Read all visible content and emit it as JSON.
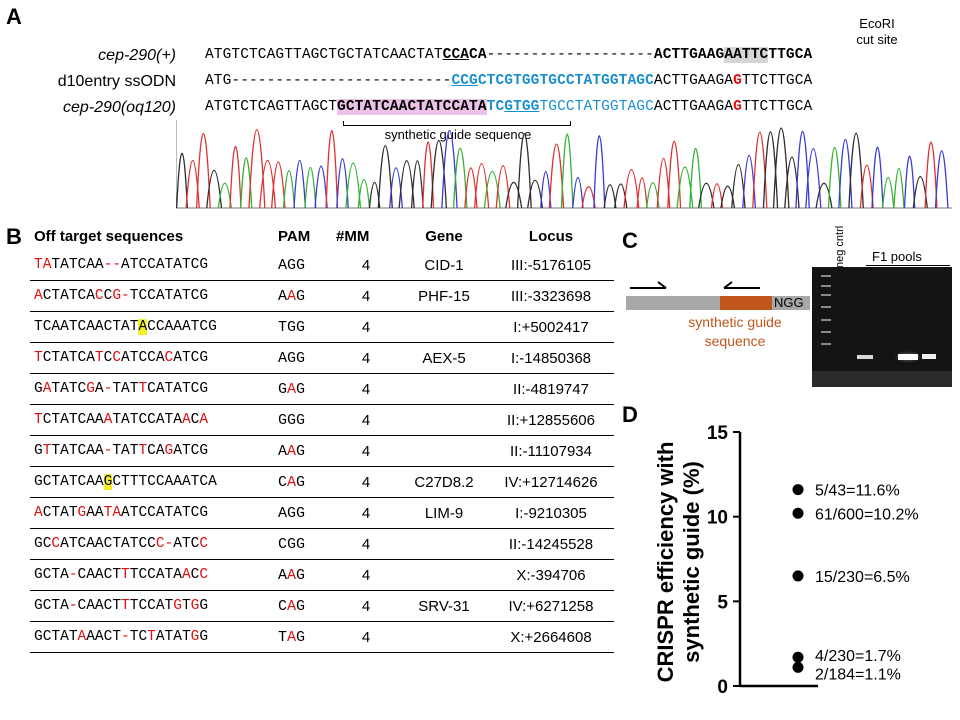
{
  "panels": {
    "a": "A",
    "b": "B",
    "c": "C",
    "d": "D"
  },
  "panel_a": {
    "ecori_label_1": "EcoRI",
    "ecori_label_2": "cut site",
    "rows": [
      {
        "label": "cep-290(+)",
        "italic": true
      },
      {
        "label": "d10entry ssODN",
        "italic": false
      },
      {
        "label": "cep-290(oq120)",
        "italic": true
      }
    ],
    "synthetic_guide_label": "synthetic guide sequence",
    "trace_colors": [
      "#e03030",
      "#2d2d2d",
      "#33b233",
      "#3a3ad6"
    ]
  },
  "panel_b": {
    "headers": [
      "Off target sequences",
      "PAM",
      "#MM",
      "Gene",
      "Locus"
    ],
    "rows": [
      {
        "seq": "TATATCAA--ATCCATATCG",
        "pam": "AGG",
        "mm": "4",
        "gene": "CID-1",
        "locus": "III:-5176105"
      },
      {
        "seq": "ACTATCACCG-TCCATATCG",
        "pam": "AAG",
        "mm": "4",
        "gene": "PHF-15",
        "locus": "III:-3323698"
      },
      {
        "seq": "TCAATCAACTATACCAAATCG",
        "pam": "TGG",
        "mm": "4",
        "gene": "",
        "locus": "I:+5002417"
      },
      {
        "seq": "TCTATCATCCATCCACATCG",
        "pam": "AGG",
        "mm": "4",
        "gene": "AEX-5",
        "locus": "I:-14850368"
      },
      {
        "seq": "GATATCGA-TATTCATATCG",
        "pam": "GAG",
        "mm": "4",
        "gene": "",
        "locus": "II:-4819747"
      },
      {
        "seq": "TCTATCAAATATCCATAACA",
        "pam": "GGG",
        "mm": "4",
        "gene": "",
        "locus": "II:+12855606"
      },
      {
        "seq": "GTTATCAA-TATTCAGATCG",
        "pam": "AAG",
        "mm": "4",
        "gene": "",
        "locus": "II:-11107934"
      },
      {
        "seq": "GCTATCAAGCTTTCCAAATCA",
        "pam": "CAG",
        "mm": "4",
        "gene": "C27D8.2",
        "locus": "IV:+12714626"
      },
      {
        "seq": "ACTATGAATAATCCATATCG",
        "pam": "AGG",
        "mm": "4",
        "gene": "LIM-9",
        "locus": "I:-9210305"
      },
      {
        "seq": "GCCATCAACTATCCC-ATCC",
        "pam": "CGG",
        "mm": "4",
        "gene": "",
        "locus": "II:-14245528"
      },
      {
        "seq": "GCTA-CAACTTTCCATAACC",
        "pam": "AAG",
        "mm": "4",
        "gene": "",
        "locus": "X:-394706"
      },
      {
        "seq": "GCTA-CAACTTTCCATGTGG",
        "pam": "CAG",
        "mm": "4",
        "gene": "SRV-31",
        "locus": "IV:+6271258"
      },
      {
        "seq": "GCTATAAACT-TCTATATGG",
        "pam": "TAG",
        "mm": "4",
        "gene": "",
        "locus": "X:+2664608"
      }
    ]
  },
  "panel_c": {
    "ngg_label": "NGG",
    "synthetic_guide_label_1": "synthetic guide",
    "synthetic_guide_label_2": "sequence",
    "neg_ctrl_label": "neg cntrl",
    "f1_pools_label": "F1 pools",
    "insert_color": "#c0561c"
  },
  "panel_d": {
    "chart_data": {
      "type": "scatter",
      "ylabel": "CRISPR efficiency with synthetic guide (%)",
      "ylim": [
        0,
        15
      ],
      "yticks": [
        0,
        5,
        10,
        15
      ],
      "points": [
        {
          "y": 11.6,
          "label": "5/43=11.6%"
        },
        {
          "y": 10.2,
          "label": "61/600=10.2%"
        },
        {
          "y": 6.5,
          "label": "15/230=6.5%"
        },
        {
          "y": 1.7,
          "label": "4/230=1.7%"
        },
        {
          "y": 1.1,
          "label": "2/184=1.1%"
        }
      ]
    }
  }
}
